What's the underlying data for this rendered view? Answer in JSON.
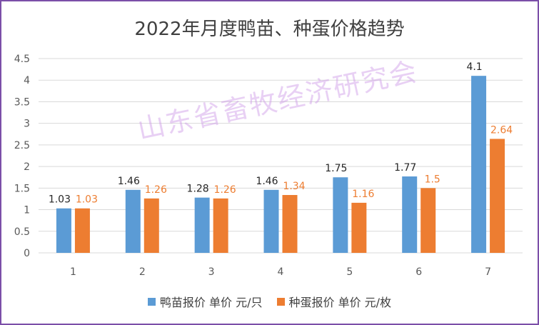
{
  "chart_data": {
    "type": "bar",
    "title": "2022年月度鸭苗、种蛋价格趋势",
    "categories": [
      "1",
      "2",
      "3",
      "4",
      "5",
      "6",
      "7"
    ],
    "series": [
      {
        "name": "鸭苗报价 单价 元/只",
        "values": [
          1.03,
          1.46,
          1.28,
          1.46,
          1.75,
          1.77,
          4.1
        ],
        "labels": [
          "1.03",
          "1.46",
          "1.28",
          "1.46",
          "1.75",
          "1.77",
          "4.1"
        ],
        "color": "#5b9bd5",
        "label_color": "#262626"
      },
      {
        "name": "种蛋报价 单价 元/枚",
        "values": [
          1.03,
          1.26,
          1.26,
          1.34,
          1.16,
          1.5,
          2.64
        ],
        "labels": [
          "1.03",
          "1.26",
          "1.26",
          "1.34",
          "1.16",
          "1.5",
          "2.64"
        ],
        "color": "#ed7d31",
        "label_color": "#ed7d31"
      }
    ],
    "ylim": [
      0,
      4.5
    ],
    "yticks": [
      "0",
      "0.5",
      "1",
      "1.5",
      "2",
      "2.5",
      "3",
      "3.5",
      "4",
      "4.5"
    ],
    "grid": true,
    "legend_position": "bottom"
  },
  "watermark": "山东省畜牧经济研究会",
  "colors": {
    "border": "#7b4fa8",
    "grid": "#d9d9d9",
    "text": "#404040"
  }
}
